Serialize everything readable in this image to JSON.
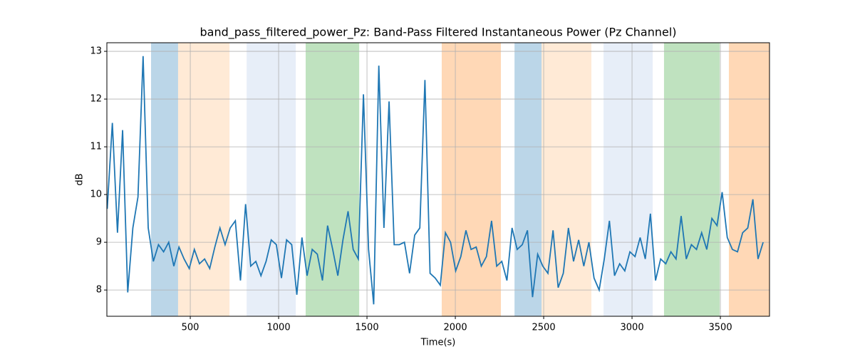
{
  "chart_data": {
    "type": "line",
    "title": "band_pass_filtered_power_Pz: Band-Pass Filtered Instantaneous Power (Pz Channel)",
    "xlabel": "Time(s)",
    "ylabel": "dB",
    "x": [
      30,
      59,
      88,
      117,
      146,
      175,
      204,
      233,
      262,
      291,
      320,
      349,
      378,
      407,
      436,
      465,
      494,
      523,
      552,
      581,
      610,
      639,
      668,
      697,
      726,
      755,
      784,
      813,
      842,
      871,
      900,
      929,
      958,
      987,
      1016,
      1045,
      1074,
      1103,
      1132,
      1161,
      1190,
      1219,
      1248,
      1277,
      1306,
      1335,
      1364,
      1393,
      1422,
      1451,
      1480,
      1509,
      1538,
      1567,
      1596,
      1625,
      1654,
      1683,
      1712,
      1741,
      1770,
      1799,
      1828,
      1857,
      1886,
      1915,
      1944,
      1973,
      2002,
      2031,
      2060,
      2089,
      2118,
      2147,
      2176,
      2205,
      2234,
      2263,
      2292,
      2321,
      2350,
      2379,
      2408,
      2437,
      2466,
      2495,
      2524,
      2553,
      2582,
      2611,
      2640,
      2669,
      2698,
      2727,
      2756,
      2785,
      2814,
      2843,
      2872,
      2901,
      2930,
      2959,
      2988,
      3017,
      3046,
      3075,
      3104,
      3133,
      3162,
      3191,
      3220,
      3249,
      3278,
      3307,
      3336,
      3365,
      3394,
      3423,
      3452,
      3481,
      3510,
      3539,
      3568,
      3597,
      3626,
      3655,
      3684,
      3713,
      3742
    ],
    "series": [
      {
        "color": "#1f77b4",
        "values": [
          9.7,
          11.5,
          9.2,
          11.35,
          7.95,
          9.3,
          9.95,
          12.9,
          9.3,
          8.6,
          8.95,
          8.8,
          9.0,
          8.5,
          8.9,
          8.65,
          8.45,
          8.85,
          8.55,
          8.65,
          8.45,
          8.9,
          9.3,
          8.95,
          9.3,
          9.45,
          8.2,
          9.8,
          8.5,
          8.6,
          8.3,
          8.6,
          9.05,
          8.95,
          8.25,
          9.05,
          8.95,
          7.9,
          9.1,
          8.3,
          8.85,
          8.75,
          8.2,
          9.35,
          8.85,
          8.3,
          9.05,
          9.65,
          8.85,
          8.65,
          12.1,
          8.85,
          7.7,
          12.7,
          9.3,
          11.95,
          8.95,
          8.95,
          9.0,
          8.35,
          9.15,
          9.3,
          12.4,
          8.35,
          8.25,
          8.1,
          9.2,
          9.0,
          8.4,
          8.7,
          9.25,
          8.85,
          8.9,
          8.5,
          8.7,
          9.45,
          8.5,
          8.6,
          8.2,
          9.3,
          8.85,
          8.95,
          9.25,
          7.85,
          8.75,
          8.5,
          8.35,
          9.25,
          8.05,
          8.35,
          9.3,
          8.6,
          9.05,
          8.5,
          9.0,
          8.25,
          8.0,
          8.65,
          9.45,
          8.3,
          8.55,
          8.4,
          8.8,
          8.7,
          9.1,
          8.65,
          9.6,
          8.2,
          8.65,
          8.55,
          8.8,
          8.65,
          9.55,
          8.65,
          8.95,
          8.85,
          9.2,
          8.85,
          9.5,
          9.35,
          10.05,
          9.1,
          8.85,
          8.8,
          9.2,
          9.3,
          9.9,
          8.65,
          9.0
        ]
      }
    ],
    "regions": [
      {
        "start": 278,
        "end": 431,
        "color": "#1f77b4",
        "alpha": 0.3
      },
      {
        "start": 431,
        "end": 722,
        "color": "#ffbb78",
        "alpha": 0.3
      },
      {
        "start": 819,
        "end": 1097,
        "color": "#aec7e8",
        "alpha": 0.3
      },
      {
        "start": 1153,
        "end": 1456,
        "color": "#2ca02c",
        "alpha": 0.3
      },
      {
        "start": 1923,
        "end": 2258,
        "color": "#ff7f0e",
        "alpha": 0.3
      },
      {
        "start": 2335,
        "end": 2488,
        "color": "#1f77b4",
        "alpha": 0.3
      },
      {
        "start": 2488,
        "end": 2770,
        "color": "#ffbb78",
        "alpha": 0.3
      },
      {
        "start": 2839,
        "end": 3117,
        "color": "#aec7e8",
        "alpha": 0.3
      },
      {
        "start": 3181,
        "end": 3496,
        "color": "#2ca02c",
        "alpha": 0.3
      },
      {
        "start": 3548,
        "end": 3778,
        "color": "#ff7f0e",
        "alpha": 0.3
      }
    ],
    "xlim": [
      28,
      3778
    ],
    "ylim": [
      7.45,
      13.18
    ],
    "xticks": [
      500,
      1000,
      1500,
      2000,
      2500,
      3000,
      3500
    ],
    "yticks": [
      8,
      9,
      10,
      11,
      12,
      13
    ],
    "grid": true
  }
}
